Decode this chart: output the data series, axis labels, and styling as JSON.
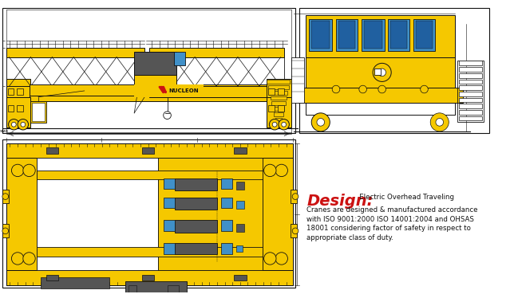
{
  "bg_color": "#ffffff",
  "yellow": "#F5C800",
  "blue": "#4090C8",
  "dark": "#222222",
  "gray": "#888888",
  "darkgray": "#555555",
  "red": "#CC1111",
  "white": "#ffffff",
  "lightgray": "#bbbbbb",
  "design_title": "Design:",
  "design_line1": "   Electric Overhead Traveling",
  "design_line2": "Cranes are designed & manufactured accordance",
  "design_line3": "with ISO 9001:2000 ISO 14001:2004 and OHSAS",
  "design_line4": "18001 considering factor of safety in respect to",
  "design_line5": "appropriate class of duty."
}
